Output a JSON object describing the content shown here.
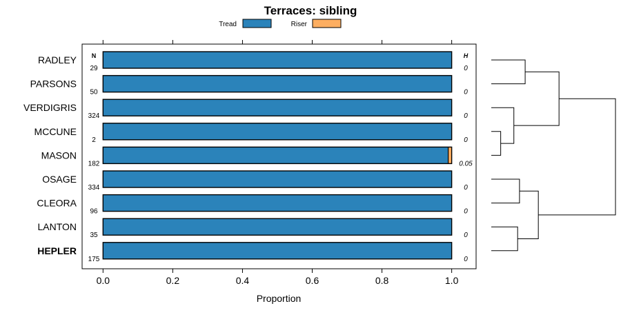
{
  "chart_data": {
    "type": "bar",
    "title": "Terraces: sibling",
    "xlabel": "Proportion",
    "ylabel": "",
    "xlim": [
      -0.06,
      1.07
    ],
    "x_ticks": [
      0.0,
      0.2,
      0.4,
      0.6,
      0.8,
      1.0
    ],
    "x_tick_labels": [
      "0.0",
      "0.2",
      "0.4",
      "0.6",
      "0.8",
      "1.0"
    ],
    "n_header": "N",
    "h_header": "H",
    "legend": [
      {
        "name": "Tread",
        "color": "#2b83ba"
      },
      {
        "name": "Riser",
        "color": "#fdae61"
      }
    ],
    "categories": [
      "RADLEY",
      "PARSONS",
      "VERDIGRIS",
      "MCCUNE",
      "MASON",
      "OSAGE",
      "CLEORA",
      "LANTON",
      "HEPLER"
    ],
    "highlight": "HEPLER",
    "n": [
      "29",
      "50",
      "324",
      "2",
      "182",
      "334",
      "96",
      "35",
      "175"
    ],
    "h": [
      "0",
      "0",
      "0",
      "0",
      "0.05",
      "0",
      "0",
      "0",
      "0"
    ],
    "series": [
      {
        "name": "Tread",
        "values": [
          1.0,
          1.0,
          1.0,
          1.0,
          0.99,
          1.0,
          1.0,
          1.0,
          1.0
        ]
      },
      {
        "name": "Riser",
        "values": [
          0.0,
          0.0,
          0.0,
          0.0,
          0.01,
          0.0,
          0.0,
          0.0,
          0.0
        ]
      }
    ],
    "dendrogram": {
      "merges": [
        {
          "a": "RADLEY",
          "b": "PARSONS",
          "height": 0.18
        },
        {
          "a": "MCCUNE",
          "b": "MASON",
          "height": 0.05
        },
        {
          "a": "VERDIGRIS",
          "b": "MCCUNE+MASON",
          "height": 0.12
        },
        {
          "a": "RADLEY+PARSONS",
          "b": "VERDIGRIS+MCCUNE+MASON",
          "height": 0.36
        },
        {
          "a": "OSAGE",
          "b": "CLEORA",
          "height": 0.15
        },
        {
          "a": "LANTON",
          "b": "HEPLER",
          "height": 0.14
        },
        {
          "a": "OSAGE+CLEORA",
          "b": "LANTON+HEPLER",
          "height": 0.25
        },
        {
          "a": "RADLEY+PARSONS+VERDIGRIS+MCCUNE+MASON",
          "b": "OSAGE+CLEORA+LANTON+HEPLER",
          "height": 0.66
        }
      ]
    }
  }
}
